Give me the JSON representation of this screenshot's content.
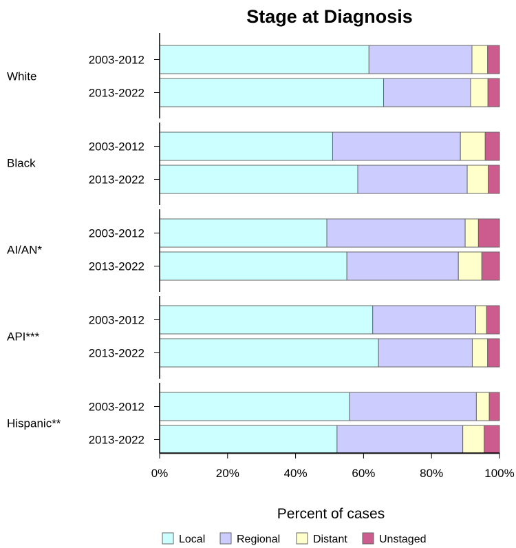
{
  "chart_data": {
    "type": "bar",
    "orientation": "horizontal",
    "stacked": true,
    "title": "Stage at Diagnosis",
    "xlabel": "Percent of cases",
    "xlim": [
      0,
      100
    ],
    "x_ticks": [
      "0%",
      "20%",
      "40%",
      "60%",
      "80%",
      "100%"
    ],
    "legend_position": "bottom",
    "grid": false,
    "series": [
      {
        "name": "Local",
        "color": "#ccffff"
      },
      {
        "name": "Regional",
        "color": "#ccccff"
      },
      {
        "name": "Distant",
        "color": "#ffffcc"
      },
      {
        "name": "Unstaged",
        "color": "#cc5c8e"
      }
    ],
    "groups": [
      {
        "name": "White",
        "bars": [
          {
            "label": "2003-2012",
            "values": [
              61.6,
              30.3,
              4.6,
              3.5
            ]
          },
          {
            "label": "2013-2022",
            "values": [
              65.9,
              25.6,
              5.1,
              3.4
            ]
          }
        ]
      },
      {
        "name": "Black",
        "bars": [
          {
            "label": "2003-2012",
            "values": [
              50.9,
              37.6,
              7.3,
              4.2
            ]
          },
          {
            "label": "2013-2022",
            "values": [
              58.3,
              32.2,
              6.2,
              3.3
            ]
          }
        ]
      },
      {
        "name": "AI/AN*",
        "bars": [
          {
            "label": "2003-2012",
            "values": [
              49.2,
              40.7,
              3.9,
              6.2
            ]
          },
          {
            "label": "2013-2022",
            "values": [
              55.1,
              32.8,
              6.9,
              5.2
            ]
          }
        ]
      },
      {
        "name": "API***",
        "bars": [
          {
            "label": "2003-2012",
            "values": [
              62.7,
              30.3,
              3.2,
              3.8
            ]
          },
          {
            "label": "2013-2022",
            "values": [
              64.4,
              27.6,
              4.5,
              3.5
            ]
          }
        ]
      },
      {
        "name": "Hispanic**",
        "bars": [
          {
            "label": "2003-2012",
            "values": [
              55.9,
              37.3,
              3.8,
              3.0
            ]
          },
          {
            "label": "2013-2022",
            "values": [
              52.2,
              37.0,
              6.3,
              4.5
            ]
          }
        ]
      }
    ]
  }
}
